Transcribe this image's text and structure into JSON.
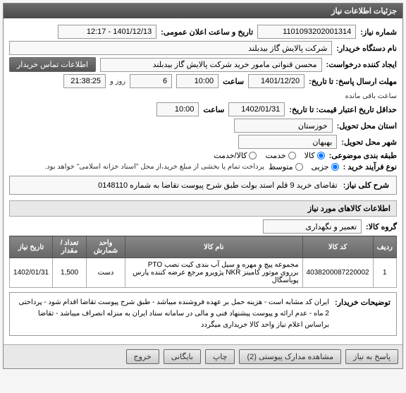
{
  "panel_title": "جزئیات اطلاعات نیاز",
  "fields": {
    "need_no_label": "شماره نیاز:",
    "need_no": "1101093202001314",
    "announce_label": "تاریخ و ساعت اعلان عمومی:",
    "announce": "1401/12/13 - 12:17",
    "buyer_org_label": "نام دستگاه خریدار:",
    "buyer_org": "شرکت پالایش گاز بیدبلند",
    "requester_label": "ایجاد کننده درخواست:",
    "requester": "محسن قنواتی مامور خرید شرکت پالایش گاز بیدبلند",
    "contact_btn": "اطلاعات تماس خریدار",
    "deadline_label": "مهلت ارسال پاسخ: تا تاریخ:",
    "deadline_date": "1401/12/20",
    "time_label": "ساعت",
    "deadline_time": "10:00",
    "days": "6",
    "days_label": "روز و",
    "remain_time": "21:38:25",
    "remain_label": "ساعت باقی مانده",
    "validity_label": "حداقل تاریخ اعتبار قیمت: تا تاریخ:",
    "validity_date": "1402/01/31",
    "validity_time": "10:00",
    "province_label": "استان محل تحویل:",
    "province": "خوزستان",
    "city_label": "شهر محل تحویل:",
    "city": "بهبهان",
    "category_label": "طبقه بندی موضوعی:",
    "cat_goods": "کالا",
    "cat_service": "خدمت",
    "cat_both": "کالا/خدمت",
    "purchase_type_label": "نوع فرآیند خرید :",
    "pt_partial": "جزیی",
    "pt_medium": "متوسط",
    "purchase_note": "پرداخت تمام یا بخشی از مبلغ خرید،از محل \"اسناد خزانه اسلامی\" خواهد بود.",
    "need_title_label": "شرح کلی نیاز:",
    "need_title": "تقاضای خرید 9 قلم استد بولت طبق شرح پیوست تقاضا به شماره 0148110",
    "items_section": "اطلاعات کالاهای مورد نیاز",
    "goods_group_label": "گروه کالا:",
    "goods_group": "تعمیر و نگهداری",
    "buyer_notes_label": "توضیحات خریدار:",
    "buyer_notes": "ایران کد مشابه است - هزینه حمل بر عهده فروشنده میباشد - طبق شرح پیوست تقاضا اقدام شود - پرداختی 2 ماه - عدم ارائه و پیوست پیشنهاد فنی و مالی در سامانه ستاد ایران به منزله انصراف میباشد - تقاضا براساس اعلام نیاز واحد کالا خریداری میگردد"
  },
  "table": {
    "headers": {
      "row": "ردیف",
      "code": "کد کالا",
      "name": "نام کالا",
      "unit": "واحد شمارش",
      "qty": "تعداد / مقدار",
      "date": "تاریخ نیاز"
    },
    "rows": [
      {
        "row": "1",
        "code": "4038200087220002",
        "name": "مجموعه پیچ و مهره و سیل آب بندی کیت نصب PTO برروی موتور کامینز NKR پژویرو مرجع عرضه کننده پارس پویاسگال",
        "unit": "دست",
        "qty": "1,500",
        "date": "1402/01/31"
      }
    ]
  },
  "footer": {
    "reply": "پاسخ به نیاز",
    "attachments": "مشاهده مدارک پیوستی (2)",
    "print": "چاپ",
    "save": "بایگانی",
    "exit": "خروج"
  }
}
